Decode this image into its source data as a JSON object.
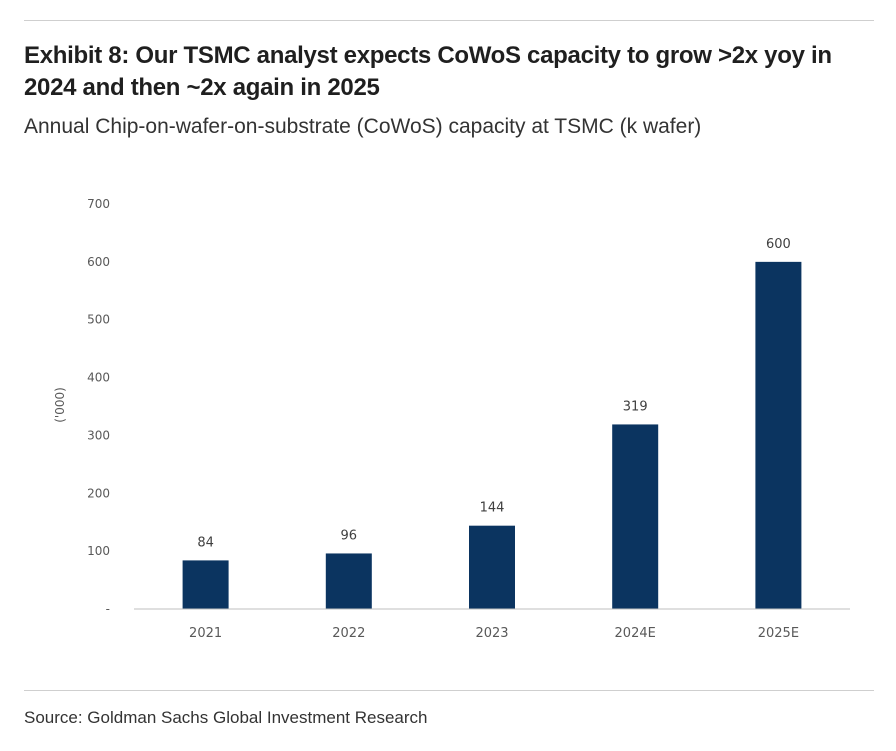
{
  "header": {
    "title": "Exhibit 8: Our TSMC analyst expects CoWoS capacity to grow >2x yoy in 2024 and then ~2x again in 2025",
    "subtitle": "Annual Chip-on-wafer-on-substrate (CoWoS) capacity at TSMC (k wafer)"
  },
  "footer": {
    "source": "Source: Goldman Sachs Global Investment Research"
  },
  "colors": {
    "bar": "#0b3460",
    "axis": "#bfbfbf",
    "tick_text": "#595959",
    "label_text": "#404040"
  },
  "chart_data": {
    "type": "bar",
    "title": "Annual Chip-on-wafer-on-substrate (CoWoS) capacity at TSMC (k wafer)",
    "xlabel": "",
    "ylabel": "('000)",
    "categories": [
      "2021",
      "2022",
      "2023",
      "2024E",
      "2025E"
    ],
    "values": [
      84,
      96,
      144,
      319,
      600
    ],
    "data_labels": [
      "84",
      "96",
      "144",
      "319",
      "600"
    ],
    "ylim": [
      0,
      700
    ],
    "yticks": [
      0,
      100,
      200,
      300,
      400,
      500,
      600,
      700
    ],
    "ytick_labels": [
      "-",
      "100",
      "200",
      "300",
      "400",
      "500",
      "600",
      "700"
    ],
    "grid": false,
    "legend": "none"
  }
}
